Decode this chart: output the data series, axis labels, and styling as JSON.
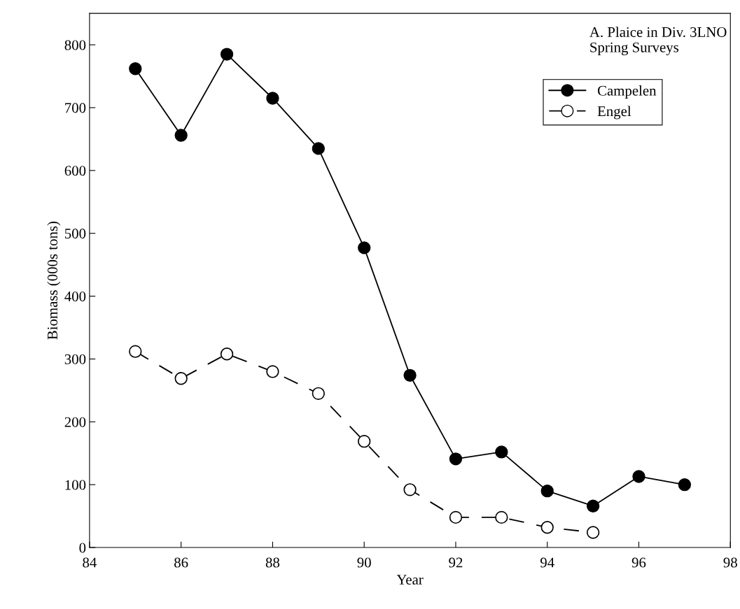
{
  "chart_data": {
    "type": "line",
    "title": "A. Plaice in Div. 3LNO\nSpring Surveys",
    "xlabel": "Year",
    "ylabel": "Biomass (000s tons)",
    "xlim": [
      84,
      98
    ],
    "xticks": [
      84,
      86,
      88,
      90,
      92,
      94,
      96,
      98
    ],
    "ylim": [
      0,
      850
    ],
    "yticks": [
      0,
      100,
      200,
      300,
      400,
      500,
      600,
      700,
      800
    ],
    "grid": false,
    "legend": "top right",
    "series": [
      {
        "name": "Campelen",
        "color": "#000000",
        "marker": "circle",
        "line_style": "solid",
        "x": [
          85,
          86,
          87,
          88,
          89,
          90,
          91,
          92,
          93,
          94,
          95,
          96,
          97
        ],
        "values": [
          762,
          656,
          785,
          715,
          635,
          477,
          274,
          141,
          152,
          90,
          66,
          113,
          100
        ]
      },
      {
        "name": "Engel",
        "color": "#ffffff",
        "marker": "circle",
        "line_style": "dashed",
        "x": [
          85,
          86,
          87,
          88,
          89,
          90,
          91,
          92,
          93,
          94,
          95
        ],
        "values": [
          312,
          269,
          308,
          280,
          245,
          169,
          92,
          48,
          48,
          32,
          24
        ]
      }
    ]
  }
}
